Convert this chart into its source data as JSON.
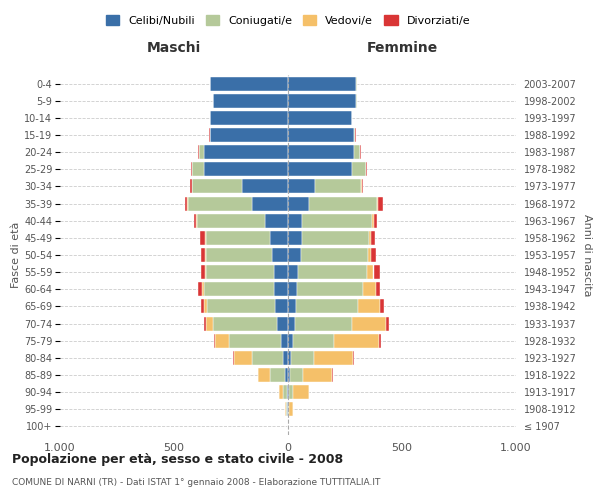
{
  "age_groups": [
    "100+",
    "95-99",
    "90-94",
    "85-89",
    "80-84",
    "75-79",
    "70-74",
    "65-69",
    "60-64",
    "55-59",
    "50-54",
    "45-49",
    "40-44",
    "35-39",
    "30-34",
    "25-29",
    "20-24",
    "15-19",
    "10-14",
    "5-9",
    "0-4"
  ],
  "birth_years": [
    "≤ 1907",
    "1908-1912",
    "1913-1917",
    "1918-1922",
    "1923-1927",
    "1928-1932",
    "1933-1937",
    "1938-1942",
    "1943-1947",
    "1948-1952",
    "1953-1957",
    "1958-1962",
    "1963-1967",
    "1968-1972",
    "1973-1977",
    "1978-1982",
    "1983-1987",
    "1988-1992",
    "1993-1997",
    "1998-2002",
    "2003-2007"
  ],
  "colors": {
    "celibi": "#3a6fa8",
    "coniugati": "#b5c99a",
    "vedovi": "#f5c069",
    "divorziati": "#d93535"
  },
  "maschi": {
    "celibi": [
      2,
      3,
      5,
      15,
      20,
      30,
      50,
      55,
      60,
      60,
      70,
      80,
      100,
      160,
      200,
      370,
      370,
      340,
      340,
      330,
      340
    ],
    "coniugati": [
      0,
      5,
      15,
      65,
      140,
      230,
      280,
      300,
      310,
      300,
      290,
      280,
      300,
      280,
      220,
      50,
      20,
      3,
      2,
      1,
      1
    ],
    "vedovi": [
      0,
      5,
      20,
      50,
      75,
      60,
      30,
      15,
      8,
      5,
      3,
      2,
      2,
      2,
      1,
      2,
      2,
      1,
      0,
      0,
      0
    ],
    "divorziati": [
      0,
      0,
      0,
      2,
      5,
      5,
      10,
      12,
      18,
      18,
      20,
      22,
      10,
      10,
      8,
      3,
      2,
      1,
      0,
      0,
      0
    ]
  },
  "femmine": {
    "celibi": [
      2,
      2,
      5,
      10,
      15,
      20,
      30,
      35,
      40,
      45,
      55,
      60,
      60,
      90,
      120,
      280,
      290,
      290,
      280,
      300,
      300
    ],
    "coniugati": [
      0,
      3,
      15,
      55,
      100,
      180,
      250,
      270,
      290,
      300,
      295,
      295,
      310,
      300,
      200,
      60,
      25,
      5,
      2,
      1,
      1
    ],
    "vedovi": [
      0,
      15,
      70,
      130,
      170,
      200,
      150,
      100,
      55,
      30,
      15,
      8,
      5,
      3,
      3,
      2,
      2,
      1,
      0,
      0,
      0
    ],
    "divorziati": [
      0,
      0,
      0,
      2,
      5,
      8,
      12,
      15,
      20,
      30,
      22,
      20,
      15,
      25,
      5,
      3,
      2,
      1,
      0,
      0,
      0
    ]
  },
  "title": "Popolazione per età, sesso e stato civile - 2008",
  "subtitle": "COMUNE DI NARNI (TR) - Dati ISTAT 1° gennaio 2008 - Elaborazione TUTTITALIA.IT",
  "xlabel_left": "Maschi",
  "xlabel_right": "Femmine",
  "ylabel_left": "Fasce di età",
  "ylabel_right": "Anni di nascita",
  "xlim": 1000,
  "legend_labels": [
    "Celibi/Nubili",
    "Coniugati/e",
    "Vedovi/e",
    "Divorziati/e"
  ],
  "bg_color": "#ffffff",
  "grid_color": "#cccccc"
}
